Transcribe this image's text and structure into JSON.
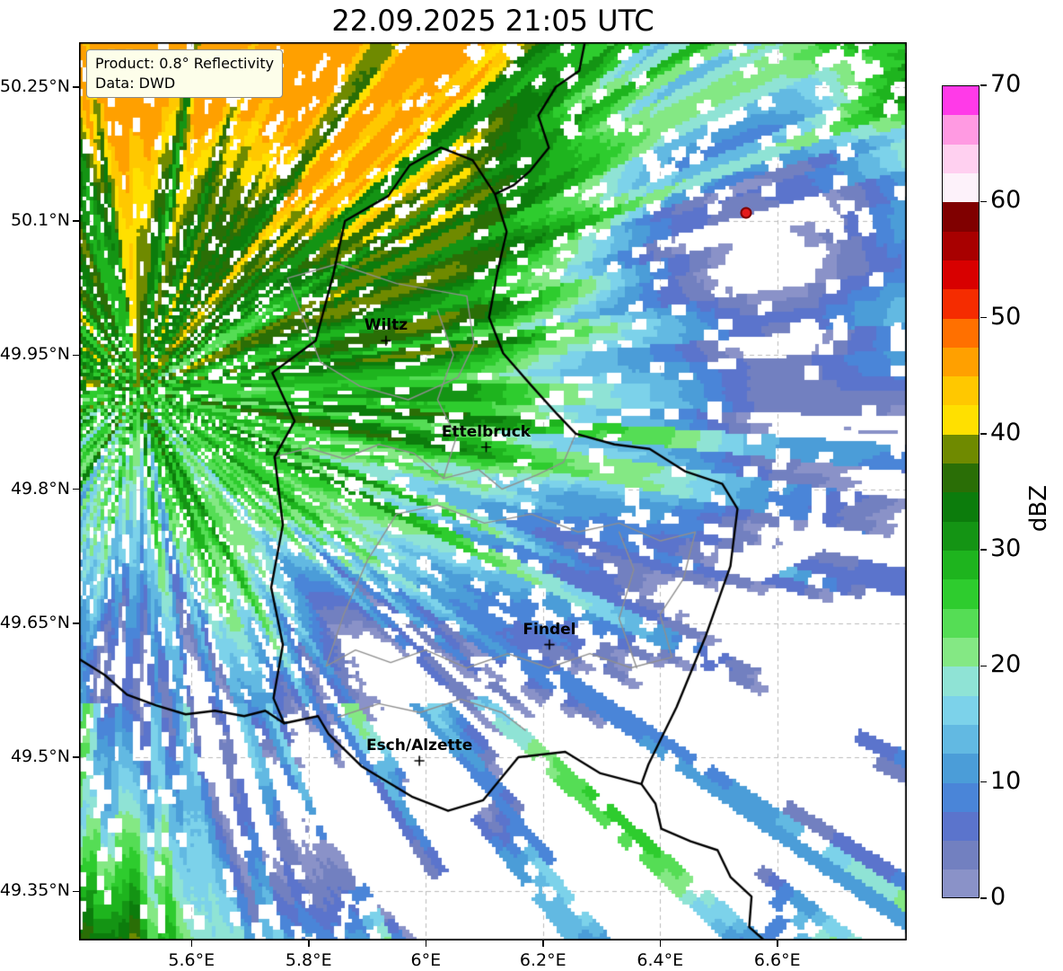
{
  "title": "22.09.2025 21:05 UTC",
  "annotation": {
    "line1": "Product: 0.8° Reflectivity",
    "line2": "Data: DWD"
  },
  "axes": {
    "extent": {
      "lon_min": 5.408,
      "lon_max": 6.821,
      "lat_min": 49.295,
      "lat_max": 50.3
    },
    "x_ticks": [
      {
        "label": "5.6°E",
        "lon": 5.6
      },
      {
        "label": "5.8°E",
        "lon": 5.8
      },
      {
        "label": "6°E",
        "lon": 6.0
      },
      {
        "label": "6.2°E",
        "lon": 6.2
      },
      {
        "label": "6.4°E",
        "lon": 6.4
      },
      {
        "label": "6.6°E",
        "lon": 6.6
      }
    ],
    "y_ticks": [
      {
        "label": "50.25°N",
        "lat": 50.25
      },
      {
        "label": "50.1°N",
        "lat": 50.1
      },
      {
        "label": "49.95°N",
        "lat": 49.95
      },
      {
        "label": "49.8°N",
        "lat": 49.8
      },
      {
        "label": "49.65°N",
        "lat": 49.65
      },
      {
        "label": "49.5°N",
        "lat": 49.5
      },
      {
        "label": "49.35°N",
        "lat": 49.35
      }
    ]
  },
  "cities": [
    {
      "name": "Wiltz",
      "lon": 5.932,
      "lat": 49.966
    },
    {
      "name": "Ettelbruck",
      "lon": 6.103,
      "lat": 49.847
    },
    {
      "name": "Findel",
      "lon": 6.211,
      "lat": 49.626
    },
    {
      "name": "Esch/Alzette",
      "lon": 5.989,
      "lat": 49.496
    }
  ],
  "radar_site": {
    "lon": 6.547,
    "lat": 50.109,
    "fill": "#e31a1c",
    "edge": "#7f0000"
  },
  "colorbar": {
    "label": "dBZ",
    "vmin": 0,
    "vmax": 70,
    "step": 2.5,
    "ticks": [
      0,
      10,
      20,
      30,
      40,
      50,
      60,
      70
    ],
    "colors": [
      "#8a92c8",
      "#7280c0",
      "#5b74cc",
      "#4a85d8",
      "#4b9dd8",
      "#62b9e2",
      "#7cd2ea",
      "#8fe3d5",
      "#84e884",
      "#55dd55",
      "#2ecc2e",
      "#1eb41e",
      "#149414",
      "#0c7c0c",
      "#2a6e06",
      "#6f8a00",
      "#ffe000",
      "#ffc800",
      "#ffa000",
      "#ff7000",
      "#f52c00",
      "#d80000",
      "#a80000",
      "#800000",
      "#fdf2fa",
      "#ffd0f0",
      "#ff9ae2",
      "#ff3ae8"
    ]
  },
  "map": {
    "background": "#ffffff",
    "gridline_color": "#bcbcbc",
    "border_color_country": "#000000",
    "border_color_admin": "#8f8f8f",
    "borders_country": [
      [
        [
          6.026,
          50.182
        ],
        [
          6.08,
          50.168
        ],
        [
          6.118,
          50.13
        ],
        [
          6.138,
          50.088
        ],
        [
          6.122,
          50.042
        ],
        [
          6.108,
          49.992
        ],
        [
          6.132,
          49.952
        ],
        [
          6.18,
          49.916
        ],
        [
          6.224,
          49.884
        ],
        [
          6.256,
          49.862
        ],
        [
          6.322,
          49.85
        ],
        [
          6.382,
          49.845
        ],
        [
          6.442,
          49.82
        ],
        [
          6.506,
          49.806
        ],
        [
          6.532,
          49.778
        ],
        [
          6.52,
          49.714
        ],
        [
          6.478,
          49.636
        ],
        [
          6.428,
          49.556
        ],
        [
          6.38,
          49.492
        ],
        [
          6.368,
          49.47
        ],
        [
          6.298,
          49.482
        ],
        [
          6.238,
          49.506
        ],
        [
          6.158,
          49.5
        ],
        [
          6.098,
          49.452
        ],
        [
          6.038,
          49.44
        ],
        [
          5.976,
          49.456
        ],
        [
          5.89,
          49.49
        ],
        [
          5.834,
          49.526
        ],
        [
          5.816,
          49.546
        ],
        [
          5.758,
          49.538
        ],
        [
          5.74,
          49.566
        ],
        [
          5.756,
          49.626
        ],
        [
          5.736,
          49.69
        ],
        [
          5.756,
          49.76
        ],
        [
          5.742,
          49.836
        ],
        [
          5.776,
          49.876
        ],
        [
          5.738,
          49.93
        ],
        [
          5.812,
          49.966
        ],
        [
          5.842,
          50.04
        ],
        [
          5.862,
          50.1
        ],
        [
          5.936,
          50.128
        ],
        [
          5.972,
          50.162
        ],
        [
          6.026,
          50.182
        ]
      ],
      [
        [
          6.272,
          50.302
        ],
        [
          6.262,
          50.268
        ],
        [
          6.222,
          50.25
        ],
        [
          6.192,
          50.218
        ],
        [
          6.21,
          50.182
        ],
        [
          6.178,
          50.156
        ],
        [
          6.15,
          50.14
        ],
        [
          6.118,
          50.13
        ]
      ],
      [
        [
          5.408,
          49.61
        ],
        [
          5.452,
          49.592
        ],
        [
          5.49,
          49.57
        ],
        [
          5.54,
          49.558
        ],
        [
          5.59,
          49.548
        ],
        [
          5.64,
          49.552
        ],
        [
          5.69,
          49.546
        ],
        [
          5.726,
          49.552
        ],
        [
          5.758,
          49.538
        ]
      ],
      [
        [
          6.368,
          49.47
        ],
        [
          6.392,
          49.448
        ],
        [
          6.402,
          49.42
        ],
        [
          6.452,
          49.406
        ],
        [
          6.498,
          49.396
        ],
        [
          6.52,
          49.366
        ],
        [
          6.556,
          49.344
        ],
        [
          6.552,
          49.31
        ],
        [
          6.578,
          49.295
        ]
      ]
    ],
    "borders_admin": [
      [
        [
          5.764,
          50.036
        ],
        [
          5.85,
          50.052
        ],
        [
          5.95,
          50.03
        ],
        [
          6.07,
          50.016
        ],
        [
          6.082,
          49.962
        ],
        [
          6.055,
          49.925
        ],
        [
          5.97,
          49.9
        ],
        [
          5.888,
          49.915
        ],
        [
          5.82,
          49.942
        ],
        [
          5.764,
          50.036
        ]
      ],
      [
        [
          6.02,
          50.0
        ],
        [
          6.047,
          49.95
        ],
        [
          6.02,
          49.9
        ],
        [
          6.052,
          49.858
        ],
        [
          6.03,
          49.812
        ]
      ],
      [
        [
          5.742,
          49.836
        ],
        [
          5.8,
          49.846
        ],
        [
          5.86,
          49.834
        ],
        [
          5.92,
          49.85
        ],
        [
          5.98,
          49.84
        ],
        [
          6.03,
          49.812
        ],
        [
          6.09,
          49.822
        ],
        [
          6.13,
          49.8
        ],
        [
          6.19,
          49.816
        ],
        [
          6.235,
          49.83
        ],
        [
          6.256,
          49.862
        ]
      ],
      [
        [
          5.95,
          49.772
        ],
        [
          6.02,
          49.782
        ],
        [
          6.1,
          49.762
        ],
        [
          6.18,
          49.772
        ],
        [
          6.26,
          49.752
        ],
        [
          6.33,
          49.762
        ],
        [
          6.4,
          49.742
        ],
        [
          6.46,
          49.752
        ],
        [
          6.44,
          49.7
        ],
        [
          6.4,
          49.66
        ],
        [
          6.42,
          49.612
        ],
        [
          6.35,
          49.6
        ],
        [
          6.28,
          49.616
        ],
        [
          6.21,
          49.6
        ],
        [
          6.14,
          49.616
        ],
        [
          6.07,
          49.6
        ],
        [
          6.0,
          49.62
        ],
        [
          5.94,
          49.606
        ],
        [
          5.88,
          49.62
        ],
        [
          5.83,
          49.602
        ],
        [
          5.86,
          49.66
        ],
        [
          5.9,
          49.72
        ],
        [
          5.95,
          49.772
        ]
      ],
      [
        [
          5.85,
          49.545
        ],
        [
          5.92,
          49.56
        ],
        [
          5.99,
          49.55
        ],
        [
          6.06,
          49.565
        ],
        [
          6.13,
          49.55
        ],
        [
          6.17,
          49.53
        ]
      ],
      [
        [
          6.36,
          49.6
        ],
        [
          6.33,
          49.655
        ],
        [
          6.355,
          49.71
        ],
        [
          6.33,
          49.752
        ]
      ]
    ],
    "field": {
      "front_lat0": 49.78,
      "front_curve": 0.3,
      "front_lon0": 6.05,
      "base_offset": 21,
      "gain_above": 48,
      "gain_below": 85,
      "streak_origin": {
        "lon": 5.51,
        "lat": 49.91
      },
      "hole": {
        "lon": 6.548,
        "lat": 50.109,
        "depth": 25,
        "radius": 0.24
      },
      "sw_band": {
        "a": 34,
        "b": 60,
        "c": 90
      },
      "clamp_max": 47
    }
  },
  "chart_data": {
    "type": "heatmap",
    "title": "22.09.2025 21:05 UTC",
    "colorbar_label": "dBZ",
    "colorbar_range": [
      0,
      70
    ],
    "colorbar_ticks": [
      0,
      10,
      20,
      30,
      40,
      50,
      60,
      70
    ],
    "x_tick_labels": [
      "5.6°E",
      "5.8°E",
      "6°E",
      "6.2°E",
      "6.4°E",
      "6.6°E"
    ],
    "y_tick_labels": [
      "50.25°N",
      "50.1°N",
      "49.95°N",
      "49.8°N",
      "49.65°N",
      "49.5°N",
      "49.35°N"
    ],
    "annotations": [
      "Product: 0.8° Reflectivity",
      "Data: DWD",
      "Wiltz",
      "Ettelbruck",
      "Findel",
      "Esch/Alzette"
    ]
  }
}
